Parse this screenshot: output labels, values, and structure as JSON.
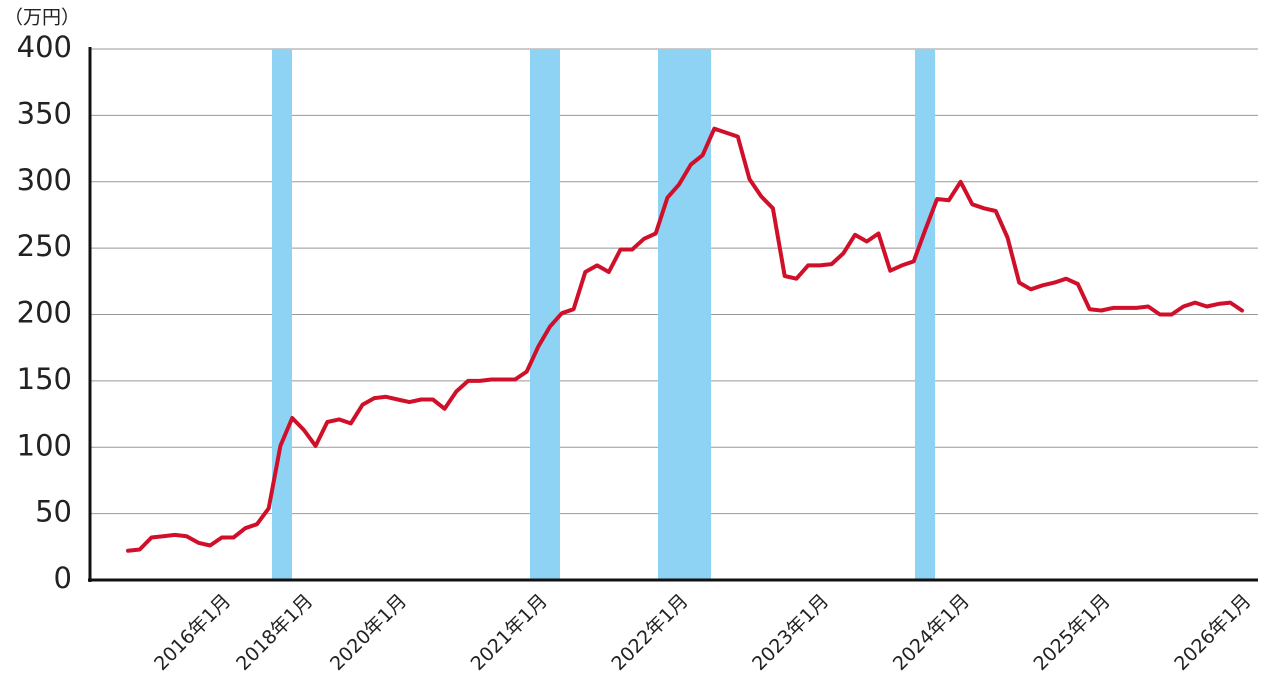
{
  "chart_data": {
    "type": "line",
    "y_label": "（万円）",
    "categories": [
      null,
      null,
      null,
      null,
      null,
      null,
      null,
      null,
      "2016年1月",
      null,
      null,
      null,
      null,
      null,
      null,
      "2018年1月",
      null,
      null,
      null,
      null,
      null,
      null,
      null,
      "2020年1月",
      null,
      null,
      null,
      null,
      null,
      null,
      null,
      null,
      null,
      null,
      null,
      "2021年1月",
      null,
      null,
      null,
      null,
      null,
      null,
      null,
      null,
      null,
      null,
      null,
      "2022年1月",
      null,
      null,
      null,
      null,
      null,
      null,
      null,
      null,
      null,
      null,
      null,
      "2023年1月",
      null,
      null,
      null,
      null,
      null,
      null,
      null,
      null,
      null,
      null,
      null,
      "2024年1月",
      null,
      null,
      null,
      null,
      null,
      null,
      null,
      null,
      null,
      null,
      null,
      "2025年1月",
      null,
      null,
      null,
      null,
      null,
      null,
      null,
      null,
      null,
      null,
      null,
      "2026年1月"
    ],
    "series": [
      {
        "color": "#d0102a",
        "values": [
          22,
          23,
          32,
          33,
          34,
          33,
          28,
          26,
          32,
          32,
          39,
          42,
          54,
          101,
          122,
          113,
          101,
          119,
          121,
          118,
          132,
          137,
          138,
          136,
          134,
          136,
          136,
          129,
          142,
          150,
          150,
          151,
          151,
          151,
          157,
          176,
          191,
          201,
          204,
          232,
          237,
          232,
          249,
          249,
          257,
          261,
          288,
          298,
          313,
          320,
          340,
          337,
          334,
          302,
          289,
          280,
          229,
          227,
          237,
          237,
          238,
          246,
          260,
          255,
          261,
          233,
          237,
          240,
          264,
          287,
          286,
          300,
          283,
          280,
          278,
          258,
          224,
          219,
          222,
          224,
          227,
          223,
          204,
          203,
          205,
          205,
          205,
          206,
          200,
          200,
          206,
          209,
          206,
          208,
          209,
          203
        ]
      }
    ],
    "ylim": [
      0,
      400
    ],
    "yticks": [
      0,
      50,
      100,
      150,
      200,
      250,
      300,
      350,
      400
    ],
    "grid": true
  }
}
